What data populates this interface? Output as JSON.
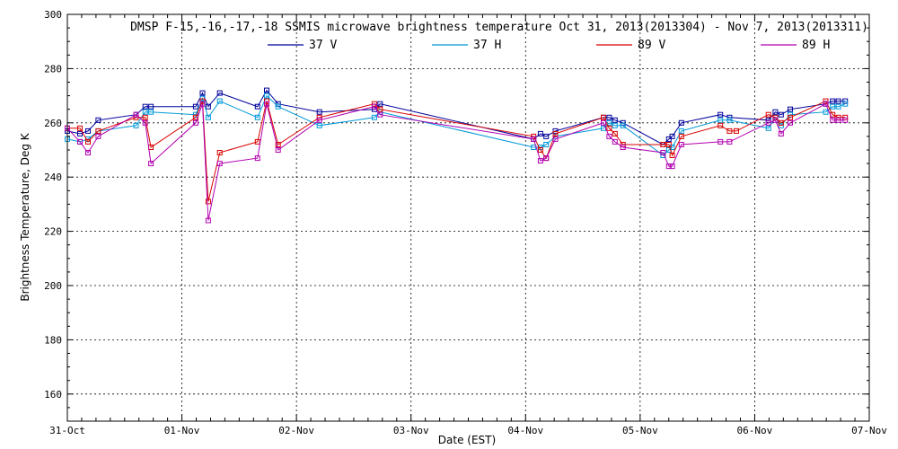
{
  "chart_data": {
    "type": "line",
    "title": "DMSP F-15,-16,-17,-18 SSMIS microwave brightness temperature Oct 31, 2013(2013304) - Nov  7, 2013(2013311)",
    "xlabel": "Date (EST)",
    "ylabel": "Brightness Temperature, Deg K",
    "x_ticks": [
      "31-Oct",
      "01-Nov",
      "02-Nov",
      "03-Nov",
      "04-Nov",
      "05-Nov",
      "06-Nov",
      "07-Nov"
    ],
    "xlim": [
      0,
      7
    ],
    "ylim": [
      150,
      300
    ],
    "y_ticks": [
      160,
      180,
      200,
      220,
      240,
      260,
      280,
      300
    ],
    "grid": true,
    "legend_position": "top-center",
    "series": [
      {
        "name": "37 V",
        "color": "#00009c",
        "points": [
          [
            0,
            257
          ],
          [
            0.11,
            256
          ],
          [
            0.18,
            257
          ],
          [
            0.27,
            261
          ],
          [
            0.6,
            263
          ],
          [
            0.68,
            266
          ],
          [
            0.73,
            266
          ],
          [
            1.12,
            266
          ],
          [
            1.18,
            271
          ],
          [
            1.23,
            266
          ],
          [
            1.33,
            271
          ],
          [
            1.66,
            266
          ],
          [
            1.74,
            272
          ],
          [
            1.84,
            267
          ],
          [
            2.2,
            264
          ],
          [
            2.68,
            265
          ],
          [
            2.73,
            267
          ],
          [
            4.07,
            254
          ],
          [
            4.13,
            256
          ],
          [
            4.18,
            255
          ],
          [
            4.26,
            257
          ],
          [
            4.68,
            262
          ],
          [
            4.73,
            262
          ],
          [
            4.78,
            261
          ],
          [
            4.85,
            260
          ],
          [
            5.2,
            252
          ],
          [
            5.25,
            254
          ],
          [
            5.28,
            255
          ],
          [
            5.36,
            260
          ],
          [
            5.7,
            263
          ],
          [
            5.78,
            262
          ],
          [
            6.12,
            261
          ],
          [
            6.18,
            264
          ],
          [
            6.23,
            263
          ],
          [
            6.31,
            265
          ],
          [
            6.62,
            267
          ],
          [
            6.68,
            268
          ],
          [
            6.73,
            268
          ],
          [
            6.79,
            268
          ]
        ]
      },
      {
        "name": "37 H",
        "color": "#0098d8",
        "points": [
          [
            0,
            254
          ],
          [
            0.11,
            253
          ],
          [
            0.18,
            254
          ],
          [
            0.27,
            257
          ],
          [
            0.6,
            259
          ],
          [
            0.68,
            264
          ],
          [
            0.73,
            264
          ],
          [
            1.12,
            263
          ],
          [
            1.18,
            269
          ],
          [
            1.23,
            262
          ],
          [
            1.33,
            268
          ],
          [
            1.66,
            262
          ],
          [
            1.74,
            270
          ],
          [
            1.84,
            266
          ],
          [
            2.2,
            259
          ],
          [
            2.68,
            262
          ],
          [
            2.73,
            264
          ],
          [
            4.07,
            251
          ],
          [
            4.13,
            251
          ],
          [
            4.18,
            252
          ],
          [
            4.26,
            255
          ],
          [
            4.68,
            258
          ],
          [
            4.73,
            260
          ],
          [
            4.78,
            259
          ],
          [
            4.85,
            259
          ],
          [
            5.2,
            248
          ],
          [
            5.25,
            250
          ],
          [
            5.28,
            251
          ],
          [
            5.36,
            257
          ],
          [
            5.7,
            261
          ],
          [
            5.78,
            261
          ],
          [
            6.12,
            258
          ],
          [
            6.18,
            262
          ],
          [
            6.23,
            259
          ],
          [
            6.31,
            263
          ],
          [
            6.62,
            264
          ],
          [
            6.68,
            266
          ],
          [
            6.73,
            266
          ],
          [
            6.79,
            267
          ]
        ]
      },
      {
        "name": "89 V",
        "color": "#d80000",
        "points": [
          [
            0,
            258
          ],
          [
            0.11,
            258
          ],
          [
            0.18,
            253
          ],
          [
            0.27,
            257
          ],
          [
            0.6,
            262
          ],
          [
            0.68,
            262
          ],
          [
            0.73,
            251
          ],
          [
            1.12,
            262
          ],
          [
            1.18,
            268
          ],
          [
            1.23,
            231
          ],
          [
            1.33,
            249
          ],
          [
            1.66,
            253
          ],
          [
            1.74,
            268
          ],
          [
            1.84,
            252
          ],
          [
            2.2,
            262
          ],
          [
            2.68,
            267
          ],
          [
            2.73,
            265
          ],
          [
            4.07,
            255
          ],
          [
            4.13,
            250
          ],
          [
            4.18,
            247
          ],
          [
            4.26,
            256
          ],
          [
            4.68,
            262
          ],
          [
            4.73,
            258
          ],
          [
            4.78,
            256
          ],
          [
            4.85,
            252
          ],
          [
            5.2,
            252
          ],
          [
            5.25,
            252
          ],
          [
            5.28,
            248
          ],
          [
            5.36,
            255
          ],
          [
            5.7,
            259
          ],
          [
            5.78,
            257
          ],
          [
            5.84,
            257
          ],
          [
            6.12,
            263
          ],
          [
            6.18,
            262
          ],
          [
            6.23,
            260
          ],
          [
            6.31,
            262
          ],
          [
            6.62,
            268
          ],
          [
            6.68,
            263
          ],
          [
            6.73,
            262
          ],
          [
            6.79,
            262
          ]
        ]
      },
      {
        "name": "89 H",
        "color": "#b000b0",
        "points": [
          [
            0,
            258
          ],
          [
            0.11,
            253
          ],
          [
            0.18,
            249
          ],
          [
            0.27,
            255
          ],
          [
            0.6,
            263
          ],
          [
            0.68,
            260
          ],
          [
            0.73,
            245
          ],
          [
            1.12,
            260
          ],
          [
            1.18,
            267
          ],
          [
            1.23,
            224
          ],
          [
            1.33,
            245
          ],
          [
            1.66,
            247
          ],
          [
            1.74,
            267
          ],
          [
            1.84,
            250
          ],
          [
            2.2,
            261
          ],
          [
            2.68,
            266
          ],
          [
            2.73,
            263
          ],
          [
            4.07,
            254
          ],
          [
            4.13,
            246
          ],
          [
            4.18,
            247
          ],
          [
            4.26,
            254
          ],
          [
            4.68,
            260
          ],
          [
            4.73,
            255
          ],
          [
            4.78,
            253
          ],
          [
            4.85,
            251
          ],
          [
            5.2,
            249
          ],
          [
            5.25,
            244
          ],
          [
            5.28,
            244
          ],
          [
            5.36,
            252
          ],
          [
            5.7,
            253
          ],
          [
            5.78,
            253
          ],
          [
            6.12,
            260
          ],
          [
            6.18,
            261
          ],
          [
            6.23,
            256
          ],
          [
            6.31,
            260
          ],
          [
            6.62,
            267
          ],
          [
            6.68,
            261
          ],
          [
            6.73,
            261
          ],
          [
            6.79,
            261
          ]
        ]
      }
    ]
  }
}
